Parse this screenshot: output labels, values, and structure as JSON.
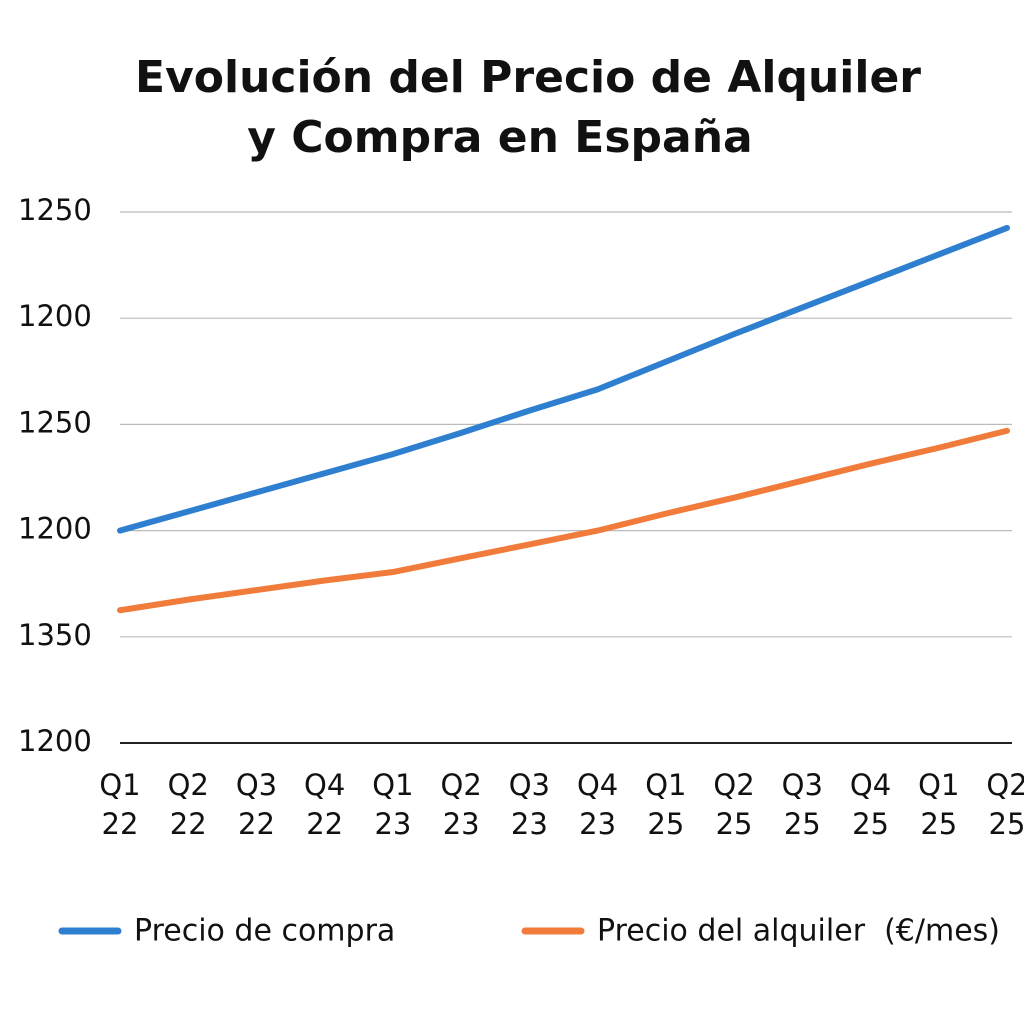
{
  "chart_data": {
    "type": "line",
    "title": [
      "Evolución del Precio de Alquiler",
      "y Compra en España"
    ],
    "categories": [
      [
        "Q1",
        "22"
      ],
      [
        "Q2",
        "22"
      ],
      [
        "Q3",
        "22"
      ],
      [
        "Q4",
        "22"
      ],
      [
        "Q1",
        "23"
      ],
      [
        "Q2",
        "23"
      ],
      [
        "Q3",
        "23"
      ],
      [
        "Q4",
        "23"
      ],
      [
        "Q1",
        "25"
      ],
      [
        "Q2",
        "25"
      ],
      [
        "Q3",
        "25"
      ],
      [
        "Q4",
        "25"
      ],
      [
        "Q1",
        "25"
      ],
      [
        "Q2",
        "25"
      ]
    ],
    "series": [
      {
        "name": "Precio de compra",
        "color": "#2f7fd0",
        "values": [
          2.0,
          2.18,
          2.36,
          2.54,
          2.72,
          2.92,
          3.13,
          3.33,
          3.59,
          3.85,
          4.1,
          4.35,
          4.6,
          4.85
        ]
      },
      {
        "name": "Precio del alquiler  (€/mes)",
        "color": "#f07b3a",
        "values": [
          1.25,
          1.35,
          1.44,
          1.53,
          1.61,
          1.74,
          1.87,
          2.0,
          2.16,
          2.31,
          2.47,
          2.63,
          2.78,
          2.94
        ]
      }
    ],
    "ylim": [
      0,
      5
    ],
    "yticks": [
      {
        "value": 0,
        "label": "1200"
      },
      {
        "value": 1,
        "label": "1350"
      },
      {
        "value": 2,
        "label": "1200"
      },
      {
        "value": 3,
        "label": "1250"
      },
      {
        "value": 4,
        "label": "1200"
      },
      {
        "value": 5,
        "label": "1250"
      }
    ],
    "grid": true
  }
}
